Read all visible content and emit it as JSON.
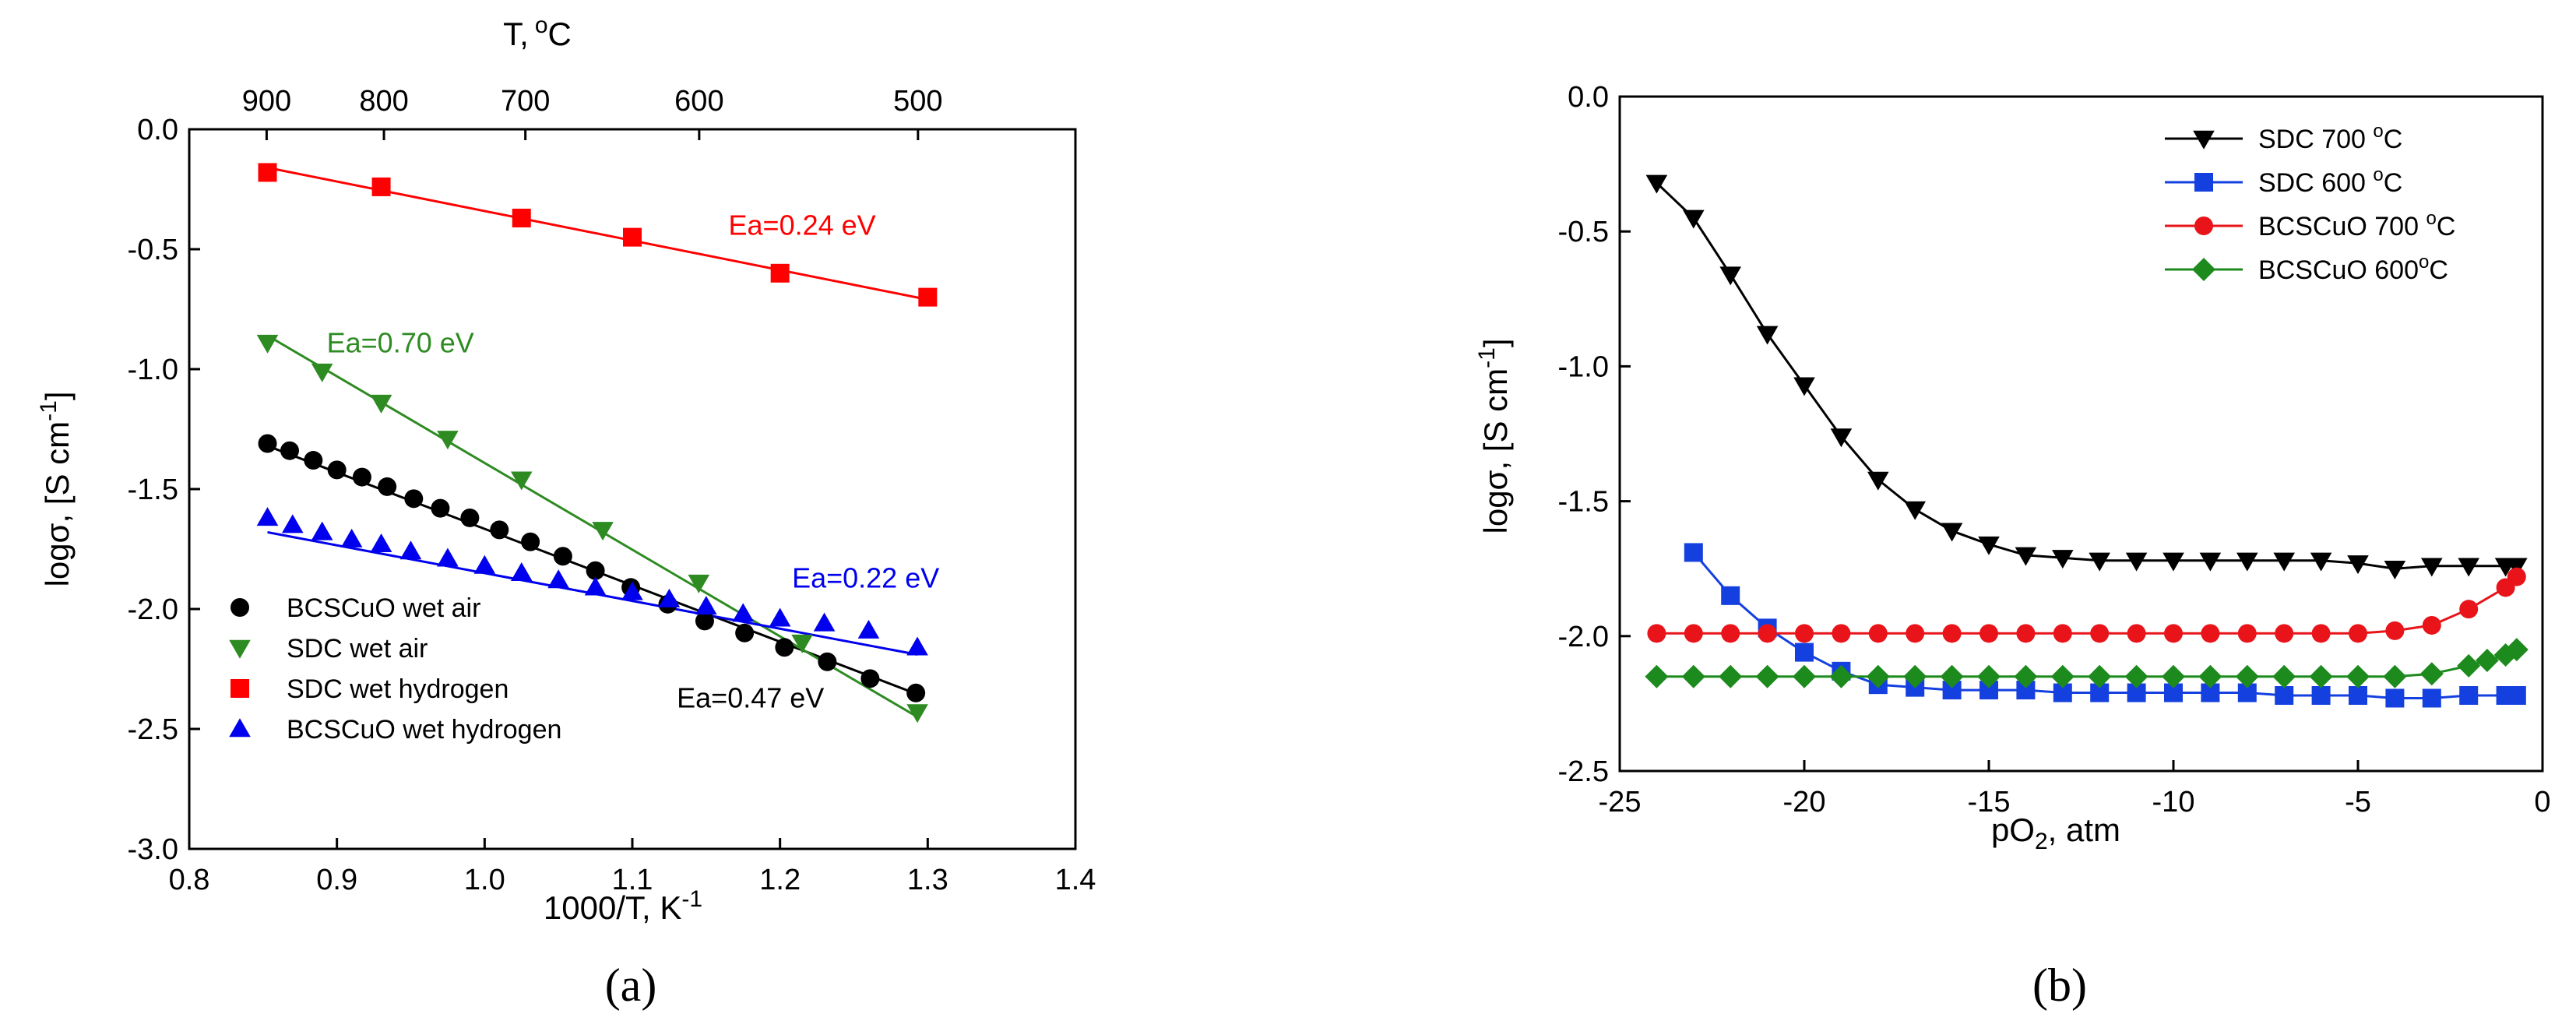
{
  "chart_data": [
    {
      "type": "scatter",
      "panel": "a",
      "xlabel": "1000/T, K",
      "xlabel_sup": "-1",
      "ylabel": "logσ, [S cm",
      "ylabel_sup": "-1",
      "ylabel_end": "]",
      "xlim": [
        0.8,
        1.4
      ],
      "ylim": [
        -3.0,
        0.0
      ],
      "xticks": [
        0.8,
        0.9,
        1.0,
        1.1,
        1.2,
        1.3,
        1.4
      ],
      "xtick_labels": [
        "0.8",
        "0.9",
        "1.0",
        "1.1",
        "1.2",
        "1.3",
        "1.4"
      ],
      "yticks": [
        0.0,
        -0.5,
        -1.0,
        -1.5,
        -2.0,
        -2.5,
        -3.0
      ],
      "ytick_labels": [
        "0.0",
        "-0.5",
        "-1.0",
        "-1.5",
        "-2.0",
        "-2.5",
        "-3.0"
      ],
      "top_axis": {
        "label": "T,",
        "label_sup": "o",
        "label_end": "C",
        "ticks_celsius": [
          900,
          800,
          700,
          600,
          500
        ],
        "tick_labels": [
          "900",
          "800",
          "700",
          "600",
          "500"
        ]
      },
      "series": [
        {
          "name": "BCSCuO wet air",
          "color": "#000000",
          "marker": "circle",
          "x": [
            0.853,
            0.868,
            0.884,
            0.9,
            0.917,
            0.934,
            0.952,
            0.97,
            0.99,
            1.01,
            1.031,
            1.053,
            1.075,
            1.099,
            1.124,
            1.149,
            1.176,
            1.203,
            1.232,
            1.261,
            1.292
          ],
          "y": [
            -1.31,
            -1.34,
            -1.38,
            -1.42,
            -1.45,
            -1.49,
            -1.54,
            -1.58,
            -1.62,
            -1.67,
            -1.72,
            -1.78,
            -1.84,
            -1.91,
            -1.98,
            -2.05,
            -2.1,
            -2.16,
            -2.22,
            -2.29,
            -2.35
          ],
          "fit": [
            [
              0.853,
              -1.32
            ],
            [
              1.295,
              -2.36
            ]
          ]
        },
        {
          "name": "SDC wet air",
          "color": "#2e8b22",
          "marker": "triangle-down",
          "x": [
            0.853,
            0.89,
            0.93,
            0.975,
            1.025,
            1.08,
            1.145,
            1.215,
            1.293
          ],
          "y": [
            -0.89,
            -1.01,
            -1.14,
            -1.29,
            -1.46,
            -1.67,
            -1.89,
            -2.14,
            -2.43
          ],
          "fit": [
            [
              0.853,
              -0.86
            ],
            [
              1.293,
              -2.45
            ]
          ]
        },
        {
          "name": "SDC wet hydrogen",
          "color": "#ff0000",
          "marker": "square",
          "x": [
            0.853,
            0.93,
            1.025,
            1.1,
            1.2,
            1.3
          ],
          "y": [
            -0.18,
            -0.24,
            -0.37,
            -0.45,
            -0.6,
            -0.7
          ],
          "fit": [
            [
              0.853,
              -0.16
            ],
            [
              1.3,
              -0.71
            ]
          ]
        },
        {
          "name": "BCSCuO wet hydrogen",
          "color": "#0000ee",
          "marker": "triangle-up",
          "x": [
            0.853,
            0.87,
            0.89,
            0.91,
            0.93,
            0.95,
            0.975,
            1.0,
            1.025,
            1.05,
            1.075,
            1.1,
            1.125,
            1.15,
            1.175,
            1.2,
            1.23,
            1.26,
            1.293
          ],
          "y": [
            -1.62,
            -1.65,
            -1.68,
            -1.71,
            -1.73,
            -1.76,
            -1.79,
            -1.82,
            -1.85,
            -1.88,
            -1.91,
            -1.93,
            -1.96,
            -1.99,
            -2.02,
            -2.04,
            -2.06,
            -2.09,
            -2.16
          ],
          "fit": [
            [
              0.853,
              -1.68
            ],
            [
              1.293,
              -2.19
            ]
          ]
        }
      ],
      "annotations": [
        {
          "text": "Ea=0.24 eV",
          "x": 1.215,
          "y": -0.44,
          "color": "#ff0000"
        },
        {
          "text": "Ea=0.70 eV",
          "x": 0.943,
          "y": -0.93,
          "color": "#2e8b22"
        },
        {
          "text": "Ea=0.22 eV",
          "x": 1.258,
          "y": -1.91,
          "color": "#0000ee"
        },
        {
          "text": "Ea=0.47 eV",
          "x": 1.18,
          "y": -2.41,
          "color": "#000000"
        }
      ],
      "legend_position": "bottom-left",
      "caption": "(a)"
    },
    {
      "type": "line",
      "panel": "b",
      "xlabel": "pO",
      "xlabel_sub": "2",
      "xlabel_end": ", atm",
      "ylabel": "logσ, [S cm",
      "ylabel_sup": "-1",
      "ylabel_end": "]",
      "xlim": [
        -25,
        0
      ],
      "ylim": [
        -2.5,
        0.0
      ],
      "xticks": [
        -25,
        -20,
        -15,
        -10,
        -5,
        0
      ],
      "xtick_labels": [
        "-25",
        "-20",
        "-15",
        "-10",
        "-5",
        "0"
      ],
      "yticks": [
        0.0,
        -0.5,
        -1.0,
        -1.5,
        -2.0,
        -2.5
      ],
      "ytick_labels": [
        "0.0",
        "-0.5",
        "-1.0",
        "-1.5",
        "-2.0",
        "-2.5"
      ],
      "series": [
        {
          "name": "SDC 700 ",
          "name_sup": "o",
          "name_end": "C",
          "color": "#000000",
          "marker": "triangle-down",
          "x": [
            -24,
            -23,
            -22,
            -21,
            -20,
            -19,
            -18,
            -17,
            -16,
            -15,
            -14,
            -13,
            -12,
            -11,
            -10,
            -9,
            -8,
            -7,
            -6,
            -5,
            -4,
            -3,
            -2,
            -1,
            -0.7
          ],
          "y": [
            -0.32,
            -0.45,
            -0.66,
            -0.88,
            -1.07,
            -1.26,
            -1.42,
            -1.53,
            -1.61,
            -1.66,
            -1.7,
            -1.71,
            -1.72,
            -1.72,
            -1.72,
            -1.72,
            -1.72,
            -1.72,
            -1.72,
            -1.73,
            -1.75,
            -1.74,
            -1.74,
            -1.74,
            -1.74
          ]
        },
        {
          "name": "SDC 600 ",
          "name_sup": "o",
          "name_end": "C",
          "color": "#1540e0",
          "marker": "square",
          "x": [
            -23,
            -22,
            -21,
            -20,
            -19,
            -18,
            -17,
            -16,
            -15,
            -14,
            -13,
            -12,
            -11,
            -10,
            -9,
            -8,
            -7,
            -6,
            -5,
            -4,
            -3,
            -2,
            -1,
            -0.7
          ],
          "y": [
            -1.69,
            -1.85,
            -1.97,
            -2.06,
            -2.13,
            -2.18,
            -2.19,
            -2.2,
            -2.2,
            -2.2,
            -2.21,
            -2.21,
            -2.21,
            -2.21,
            -2.21,
            -2.21,
            -2.22,
            -2.22,
            -2.22,
            -2.23,
            -2.23,
            -2.22,
            -2.22,
            -2.22
          ]
        },
        {
          "name": "BCSCuO 700 ",
          "name_sup": "o",
          "name_end": "C",
          "color": "#e8141a",
          "marker": "circle",
          "x": [
            -24,
            -23,
            -22,
            -21,
            -20,
            -19,
            -18,
            -17,
            -16,
            -15,
            -14,
            -13,
            -12,
            -11,
            -10,
            -9,
            -8,
            -7,
            -6,
            -5,
            -4,
            -3,
            -2,
            -1,
            -0.7
          ],
          "y": [
            -1.99,
            -1.99,
            -1.99,
            -1.99,
            -1.99,
            -1.99,
            -1.99,
            -1.99,
            -1.99,
            -1.99,
            -1.99,
            -1.99,
            -1.99,
            -1.99,
            -1.99,
            -1.99,
            -1.99,
            -1.99,
            -1.99,
            -1.99,
            -1.98,
            -1.96,
            -1.9,
            -1.82,
            -1.78
          ]
        },
        {
          "name": "BCSCuO 600",
          "name_sup": "o",
          "name_end": "C",
          "color": "#1d8a1d",
          "marker": "diamond",
          "x": [
            -24,
            -23,
            -22,
            -21,
            -20,
            -19,
            -18,
            -17,
            -16,
            -15,
            -14,
            -13,
            -12,
            -11,
            -10,
            -9,
            -8,
            -7,
            -6,
            -5,
            -4,
            -3,
            -2,
            -1.5,
            -1,
            -0.7
          ],
          "y": [
            -2.15,
            -2.15,
            -2.15,
            -2.15,
            -2.15,
            -2.15,
            -2.15,
            -2.15,
            -2.15,
            -2.15,
            -2.15,
            -2.15,
            -2.15,
            -2.15,
            -2.15,
            -2.15,
            -2.15,
            -2.15,
            -2.15,
            -2.15,
            -2.15,
            -2.14,
            -2.11,
            -2.09,
            -2.07,
            -2.05
          ]
        }
      ],
      "legend_position": "top-right",
      "caption": "(b)"
    }
  ]
}
